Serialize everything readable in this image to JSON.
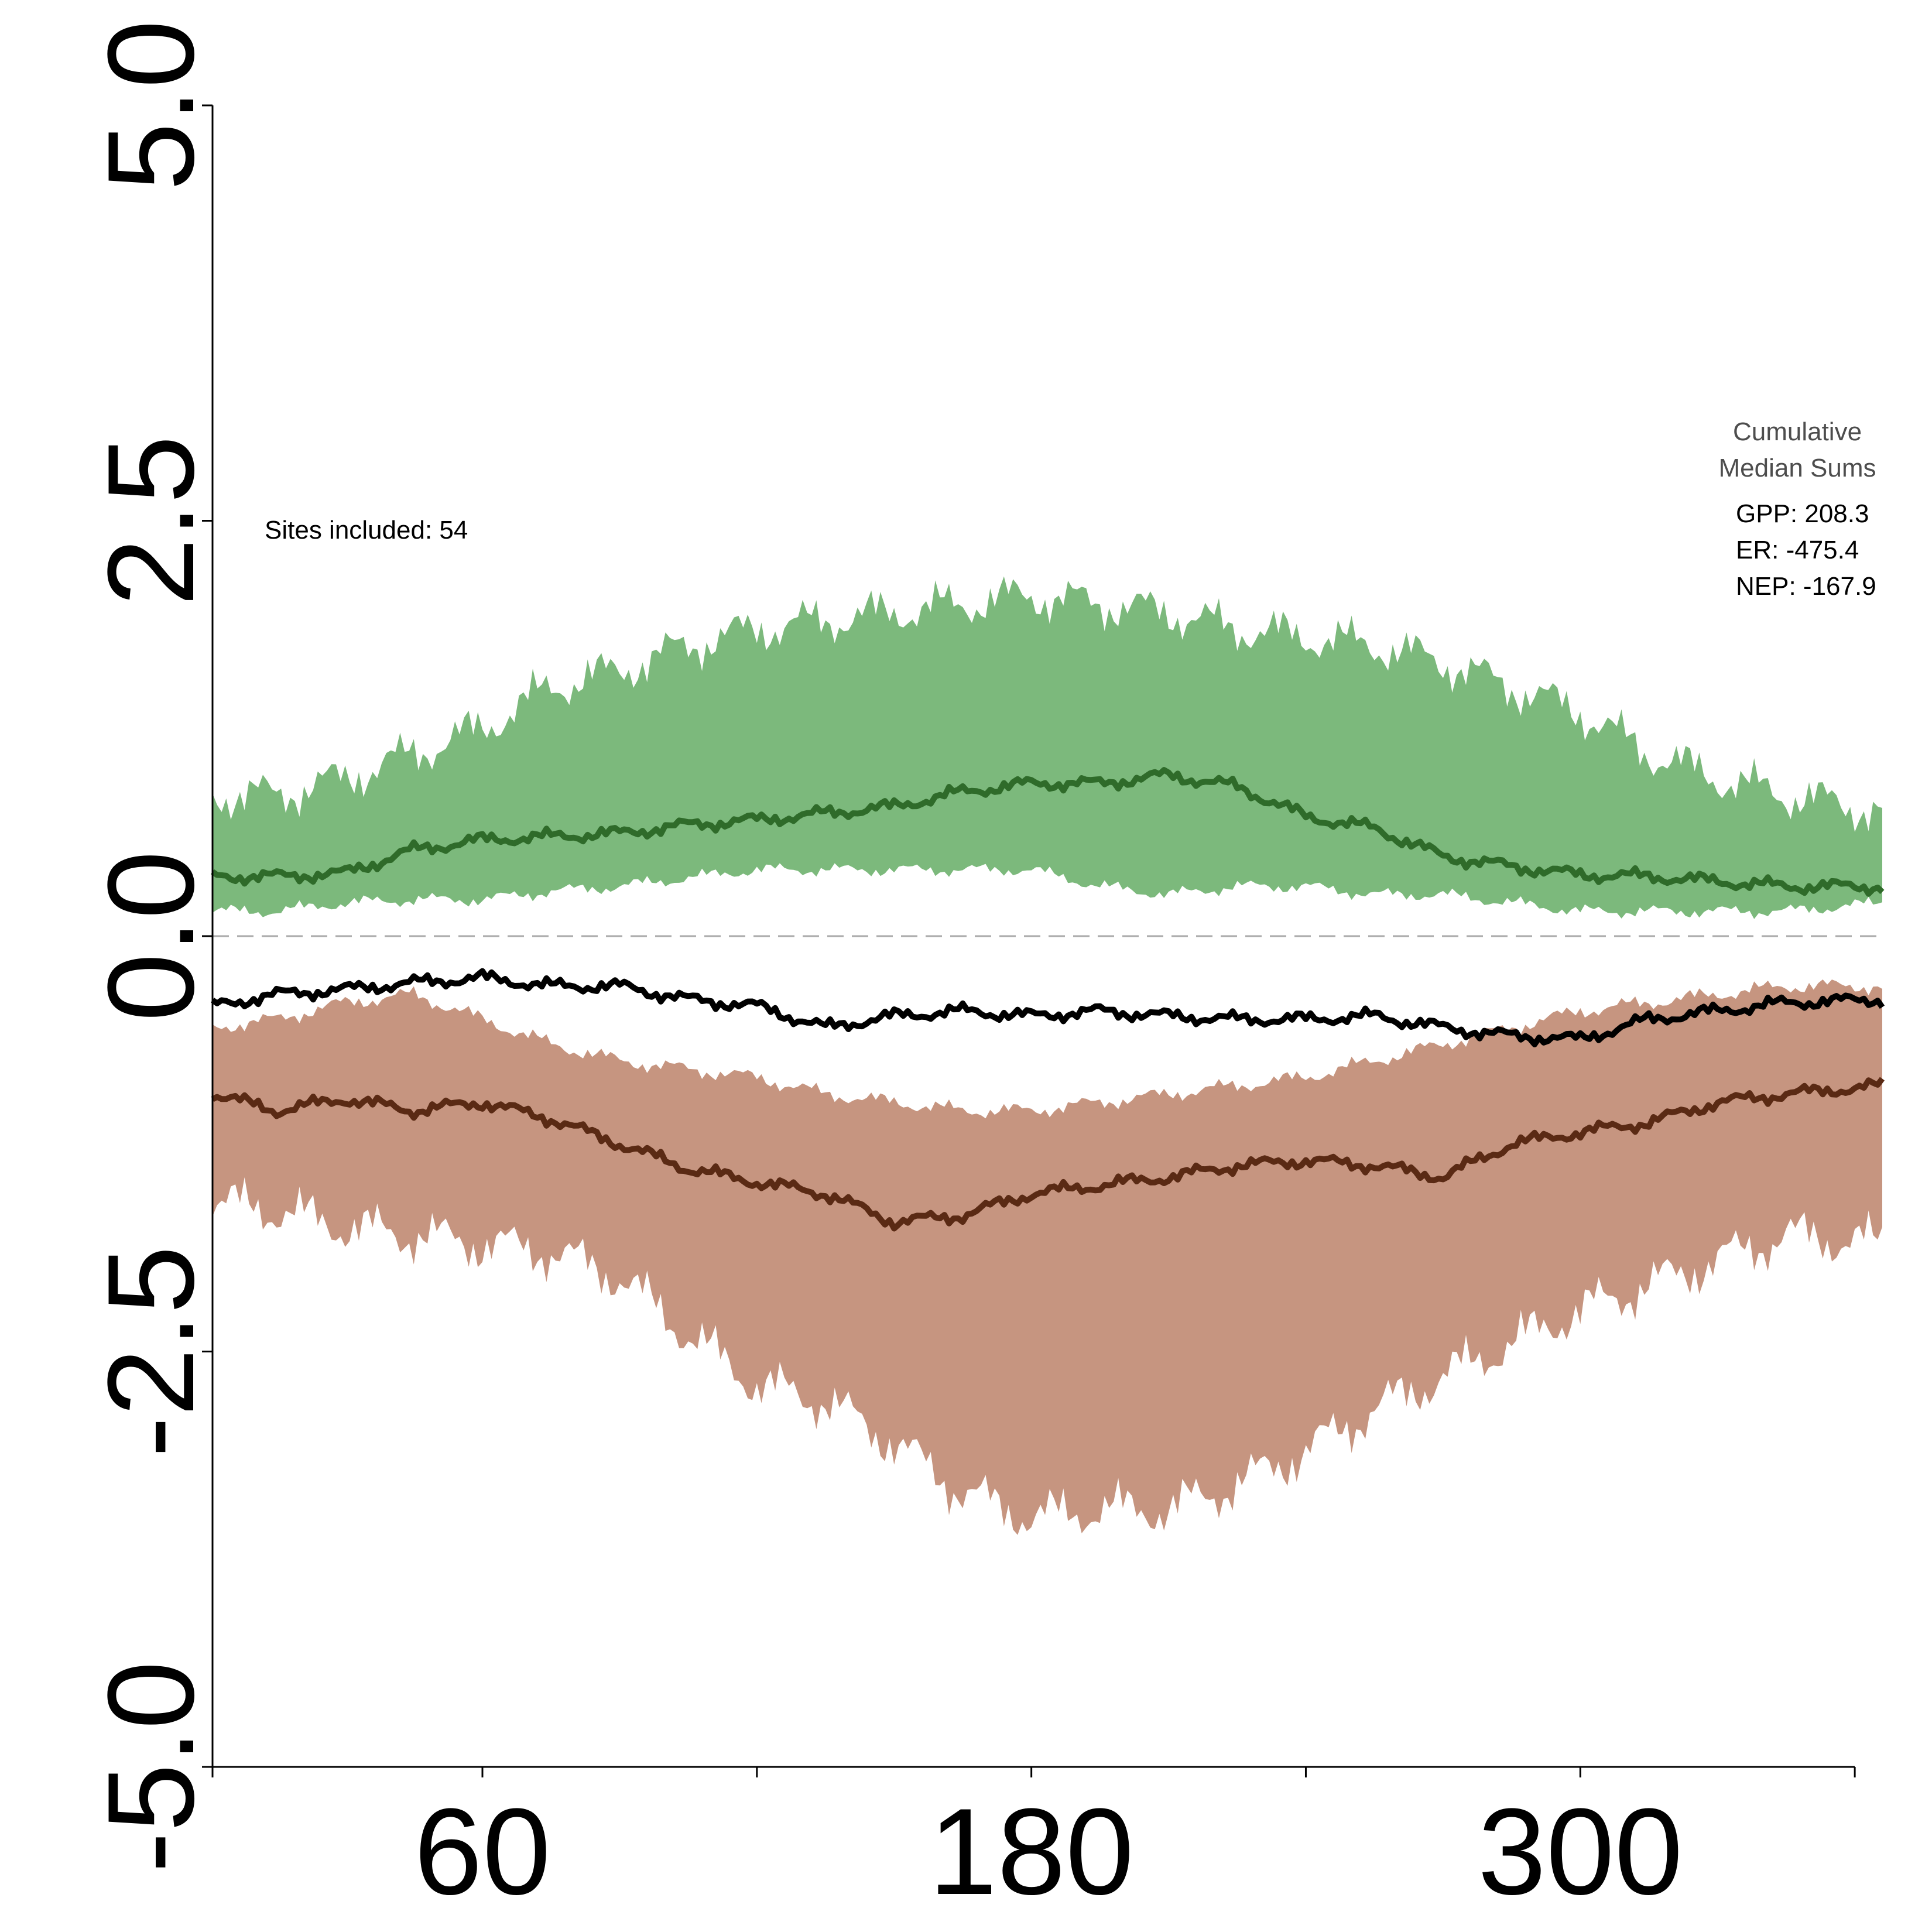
{
  "chart_data": {
    "type": "area",
    "xlim": [
      1,
      366
    ],
    "ylim": [
      -5.0,
      5.0
    ],
    "x_ticks": [
      1,
      60,
      120,
      180,
      240,
      300,
      360
    ],
    "x_tick_labels": [
      "",
      "60",
      "",
      "180",
      "",
      "300",
      ""
    ],
    "y_ticks": [
      5.0,
      2.5,
      0.0,
      -2.5,
      -5.0
    ],
    "y_tick_labels": [
      "5.0",
      "2.5",
      "0.0",
      "-2.5",
      "-5.0"
    ],
    "zero_line": "dashed",
    "grid": false,
    "annotation": "Sites included: 54",
    "legend": {
      "title_lines": [
        "Cumulative",
        "Median Sums"
      ],
      "entries": [
        "GPP: 208.3",
        "ER: -475.4",
        "NEP: -167.9"
      ],
      "placement": "top-right"
    },
    "colors": {
      "gpp_band": "#7cb97c",
      "gpp_median": "#2f6b2a",
      "er_band": "#c69580",
      "er_median": "#5a2a14",
      "nep_median": "#000000",
      "zero_line": "#aaaaaa"
    },
    "series": [
      {
        "key": "gpp",
        "x": [
          1,
          15,
          30,
          45,
          60,
          75,
          90,
          105,
          120,
          135,
          150,
          165,
          180,
          195,
          210,
          225,
          240,
          255,
          270,
          285,
          300,
          315,
          330,
          345,
          366
        ],
        "upper": [
          0.85,
          0.85,
          0.95,
          1.1,
          1.25,
          1.5,
          1.6,
          1.75,
          1.85,
          1.9,
          1.95,
          2.0,
          2.05,
          2.0,
          1.95,
          1.85,
          1.8,
          1.75,
          1.65,
          1.5,
          1.35,
          1.1,
          0.95,
          0.85,
          0.75
        ],
        "median": [
          0.36,
          0.36,
          0.38,
          0.52,
          0.58,
          0.6,
          0.62,
          0.67,
          0.7,
          0.74,
          0.78,
          0.87,
          0.92,
          0.92,
          0.97,
          0.9,
          0.72,
          0.65,
          0.48,
          0.42,
          0.37,
          0.36,
          0.33,
          0.3,
          0.3
        ],
        "lower": [
          0.15,
          0.15,
          0.2,
          0.22,
          0.22,
          0.27,
          0.3,
          0.35,
          0.4,
          0.4,
          0.4,
          0.4,
          0.4,
          0.3,
          0.25,
          0.3,
          0.3,
          0.25,
          0.25,
          0.2,
          0.15,
          0.15,
          0.15,
          0.15,
          0.2
        ]
      },
      {
        "key": "er",
        "x": [
          1,
          15,
          30,
          45,
          60,
          75,
          90,
          105,
          120,
          135,
          150,
          165,
          180,
          195,
          210,
          225,
          240,
          255,
          270,
          285,
          300,
          315,
          330,
          345,
          366
        ],
        "upper": [
          -0.55,
          -0.5,
          -0.4,
          -0.35,
          -0.5,
          -0.65,
          -0.75,
          -0.8,
          -0.85,
          -0.95,
          -1.0,
          -1.05,
          -1.05,
          -1.0,
          -0.95,
          -0.9,
          -0.85,
          -0.75,
          -0.65,
          -0.55,
          -0.45,
          -0.4,
          -0.35,
          -0.3,
          -0.3
        ],
        "median": [
          -0.95,
          -1.05,
          -0.98,
          -1.05,
          -1.0,
          -1.1,
          -1.25,
          -1.4,
          -1.48,
          -1.55,
          -1.72,
          -1.68,
          -1.55,
          -1.5,
          -1.45,
          -1.38,
          -1.35,
          -1.38,
          -1.45,
          -1.25,
          -1.18,
          -1.12,
          -1.0,
          -0.95,
          -0.9
        ],
        "lower": [
          -1.6,
          -1.65,
          -1.75,
          -1.8,
          -1.85,
          -1.9,
          -2.05,
          -2.4,
          -2.7,
          -2.8,
          -3.05,
          -3.35,
          -3.5,
          -3.45,
          -3.45,
          -3.3,
          -3.1,
          -2.85,
          -2.65,
          -2.45,
          -2.25,
          -2.1,
          -1.95,
          -1.8,
          -1.85
        ]
      },
      {
        "key": "nep",
        "x": [
          1,
          15,
          30,
          45,
          60,
          75,
          90,
          105,
          120,
          135,
          150,
          165,
          180,
          195,
          210,
          225,
          240,
          255,
          270,
          285,
          300,
          315,
          330,
          345,
          366
        ],
        "median": [
          -0.42,
          -0.35,
          -0.32,
          -0.28,
          -0.25,
          -0.3,
          -0.3,
          -0.38,
          -0.42,
          -0.55,
          -0.48,
          -0.45,
          -0.48,
          -0.45,
          -0.48,
          -0.5,
          -0.5,
          -0.48,
          -0.55,
          -0.6,
          -0.62,
          -0.5,
          -0.45,
          -0.4,
          -0.38
        ]
      }
    ]
  }
}
